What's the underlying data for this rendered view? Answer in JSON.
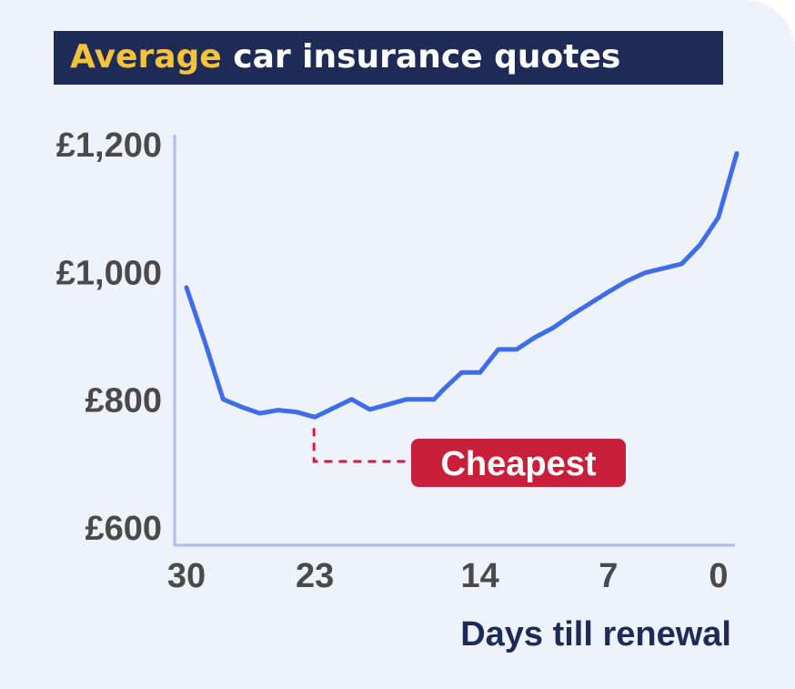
{
  "title": {
    "highlight": "Average",
    "rest": " car insurance quotes"
  },
  "colors": {
    "background": "#eef2fb",
    "title_bg": "#1f2b57",
    "title_highlight": "#f5c33b",
    "line": "#3f6ce8",
    "axis": "#a9bdf2",
    "tick_text": "#4a4a4a",
    "annotation": "#c8203a"
  },
  "chart_data": {
    "type": "line",
    "title": "Average car insurance quotes",
    "xlabel": "Days till renewal",
    "ylabel": "",
    "x_ticks": [
      30,
      23,
      14,
      7,
      0
    ],
    "y_ticks": [
      {
        "value": 600,
        "label": "£600"
      },
      {
        "value": 800,
        "label": "£800"
      },
      {
        "value": 1000,
        "label": "£1,000"
      },
      {
        "value": 1200,
        "label": "£1,200"
      }
    ],
    "xlim": [
      30,
      0
    ],
    "ylim": [
      600,
      1200
    ],
    "grid": false,
    "series": [
      {
        "x": [
          30,
          29,
          28,
          27,
          26,
          25,
          24,
          23,
          22,
          21,
          20,
          19,
          18,
          17,
          16.5,
          16,
          15,
          14,
          13,
          12,
          11,
          10,
          9,
          8,
          7,
          6,
          5,
          4,
          3,
          2,
          1,
          0
        ],
        "values": [
          975,
          890,
          800,
          788,
          778,
          783,
          780,
          772,
          786,
          800,
          784,
          792,
          800,
          800,
          800,
          815,
          842,
          842,
          878,
          878,
          897,
          912,
          932,
          950,
          968,
          985,
          998,
          1005,
          1012,
          1042,
          1085,
          1185
        ]
      }
    ],
    "annotations": [
      {
        "text": "Cheapest",
        "x": 23,
        "y": 772
      }
    ]
  }
}
